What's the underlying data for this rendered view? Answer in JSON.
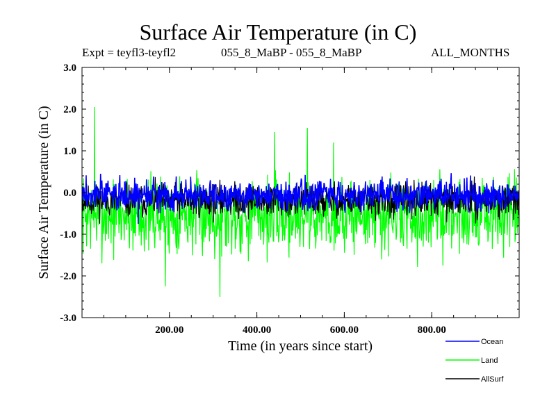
{
  "chart_data": {
    "type": "line",
    "title": "Surface Air Temperature (in C)",
    "subtitle_left": "Expt = teyfl3-teyfl2",
    "subtitle_center": "055_8_MaBP - 055_8_MaBP",
    "subtitle_right": "ALL_MONTHS",
    "xlabel": "Time (in years since start)",
    "ylabel": "Surface Air Temperature (in C)",
    "xlim": [
      0,
      1000
    ],
    "ylim": [
      -3.0,
      3.0
    ],
    "x_ticks": [
      200,
      400,
      600,
      800
    ],
    "x_tick_labels": [
      "200.00",
      "400.00",
      "600.00",
      "800.00"
    ],
    "y_ticks": [
      -3,
      -2,
      -1,
      0,
      1,
      2,
      3
    ],
    "y_tick_labels": [
      "-3.0",
      "-2.0",
      "-1.0",
      "0.0",
      "1.0",
      "2.0",
      "3.0"
    ],
    "n_points": 1000,
    "series": [
      {
        "name": "Ocean",
        "color": "#0000ff",
        "mean": -0.05,
        "amplitude": 0.18,
        "seed": 3,
        "extrema": [
          {
            "x": 42,
            "y": 0.45
          },
          {
            "x": 128,
            "y": -0.75
          },
          {
            "x": 510,
            "y": 0.42
          }
        ]
      },
      {
        "name": "Land",
        "color": "#00ff00",
        "mean": -0.55,
        "amplitude": 0.45,
        "seed": 7,
        "extrema": [
          {
            "x": 28,
            "y": 2.05
          },
          {
            "x": 515,
            "y": 1.55
          },
          {
            "x": 315,
            "y": -2.5
          },
          {
            "x": 190,
            "y": -2.25
          },
          {
            "x": 575,
            "y": 1.2
          },
          {
            "x": 440,
            "y": 1.45
          }
        ]
      },
      {
        "name": "AllSurf",
        "color": "#000000",
        "mean": -0.2,
        "amplitude": 0.2,
        "seed": 11,
        "extrema": []
      }
    ]
  }
}
